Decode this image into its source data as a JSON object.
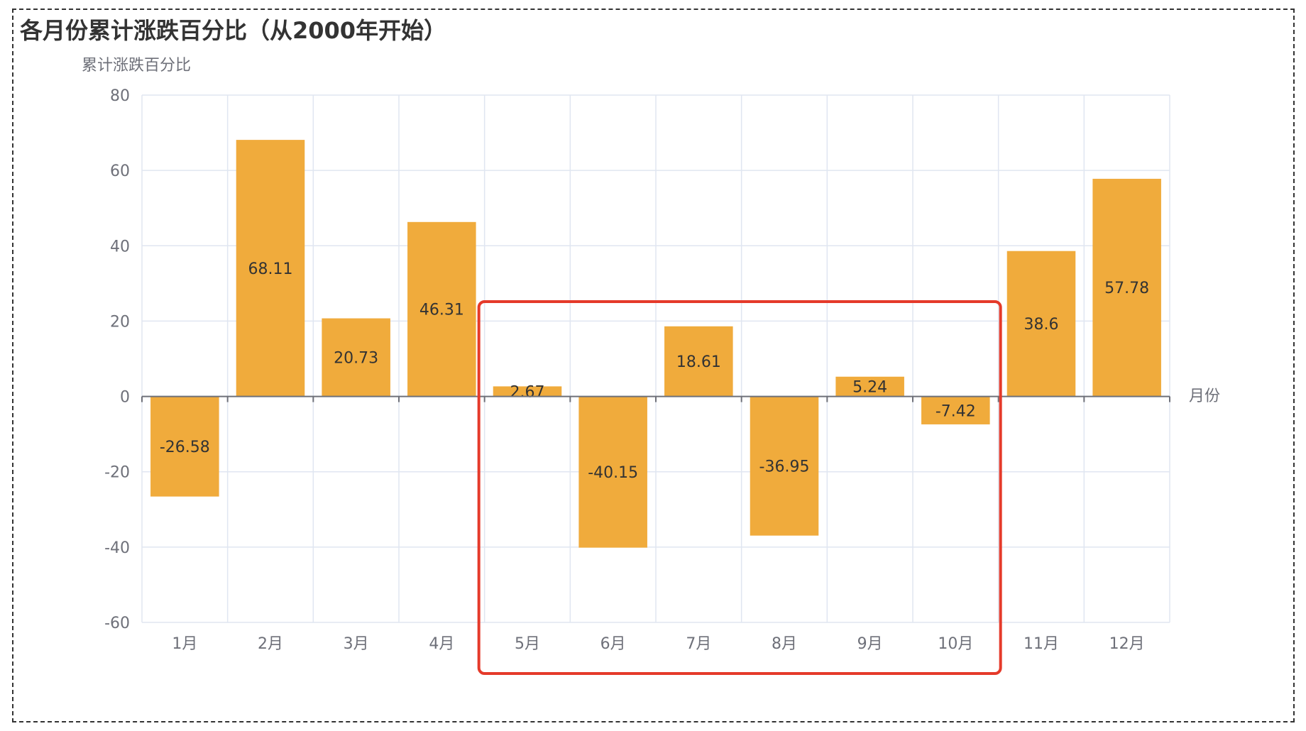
{
  "chart_data": {
    "type": "bar",
    "title": "各月份累计涨跌百分比（从2000年开始）",
    "ylabel": "累计涨跌百分比",
    "xlabel": "月份",
    "categories": [
      "1月",
      "2月",
      "3月",
      "4月",
      "5月",
      "6月",
      "7月",
      "8月",
      "9月",
      "10月",
      "11月",
      "12月"
    ],
    "values": [
      -26.58,
      68.11,
      20.73,
      46.31,
      2.67,
      -40.15,
      18.61,
      -36.95,
      5.24,
      -7.42,
      38.6,
      57.78
    ],
    "ylim": [
      -60,
      80
    ],
    "yticks": [
      80,
      60,
      40,
      20,
      0,
      -20,
      -40,
      -60
    ],
    "grid": true,
    "bar_color": "#f0ab3c",
    "highlight": {
      "from_category": "5月",
      "to_category": "10月",
      "color": "#e53a2a"
    }
  }
}
